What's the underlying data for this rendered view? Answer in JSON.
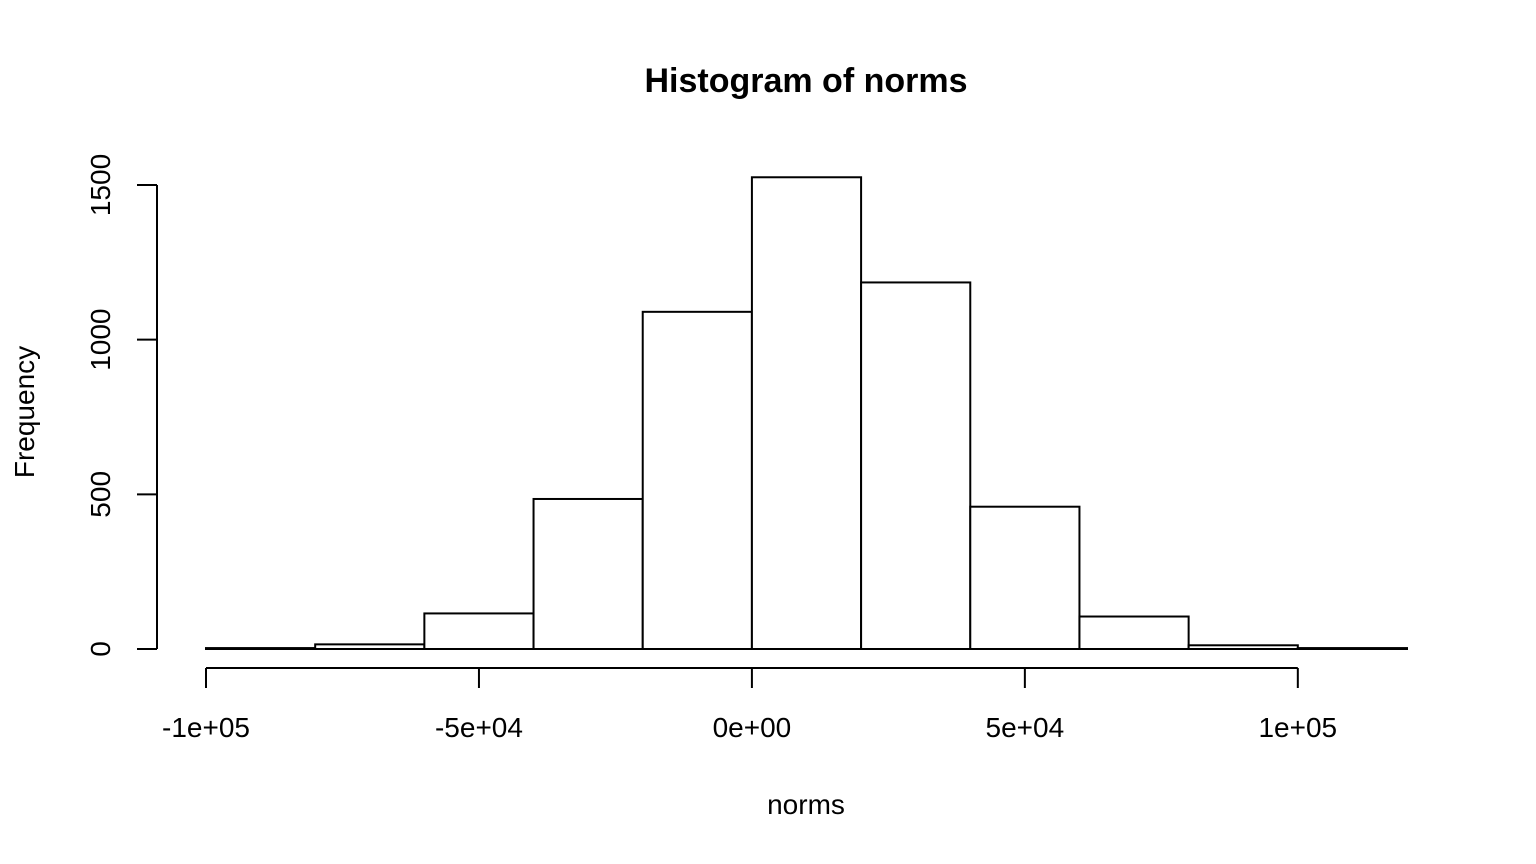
{
  "chart_data": {
    "type": "bar",
    "title": "Histogram of norms",
    "xlabel": "norms",
    "ylabel": "Frequency",
    "bins": [
      {
        "start": -100000,
        "end": -80000,
        "count": 3
      },
      {
        "start": -80000,
        "end": -60000,
        "count": 15
      },
      {
        "start": -60000,
        "end": -40000,
        "count": 115
      },
      {
        "start": -40000,
        "end": -20000,
        "count": 485
      },
      {
        "start": -20000,
        "end": 0,
        "count": 1090
      },
      {
        "start": 0,
        "end": 20000,
        "count": 1525
      },
      {
        "start": 20000,
        "end": 40000,
        "count": 1185
      },
      {
        "start": 40000,
        "end": 60000,
        "count": 460
      },
      {
        "start": 60000,
        "end": 80000,
        "count": 105
      },
      {
        "start": 80000,
        "end": 100000,
        "count": 12
      },
      {
        "start": 100000,
        "end": 120000,
        "count": 3
      }
    ],
    "xlim": [
      -100000,
      120000
    ],
    "ylim": [
      0,
      1500
    ],
    "x_ticks": [
      {
        "value": -100000,
        "label": "-1e+05"
      },
      {
        "value": -50000,
        "label": "-5e+04"
      },
      {
        "value": 0,
        "label": "0e+00"
      },
      {
        "value": 50000,
        "label": "5e+04"
      },
      {
        "value": 100000,
        "label": "1e+05"
      }
    ],
    "y_ticks": [
      {
        "value": 0,
        "label": "0"
      },
      {
        "value": 500,
        "label": "500"
      },
      {
        "value": 1000,
        "label": "1000"
      },
      {
        "value": 1500,
        "label": "1500"
      }
    ],
    "grid": false,
    "legend": "none",
    "colors": {
      "bar_fill": "#ffffff",
      "bar_stroke": "#000000"
    }
  }
}
